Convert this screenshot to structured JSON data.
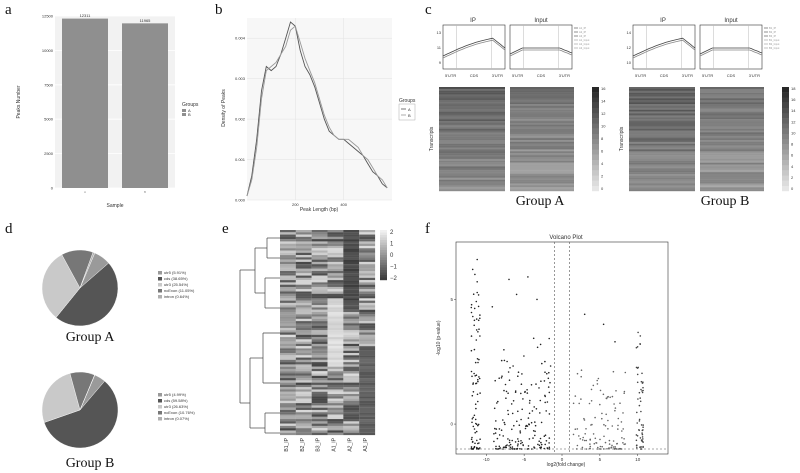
{
  "panel_letters": [
    "a",
    "b",
    "c",
    "d",
    "e",
    "f"
  ],
  "colors": {
    "bar": "#8f8f8f",
    "grid": "#e2e2e2",
    "dark_gray": "#555555",
    "mid_gray": "#777777",
    "light_gray": "#c9c9c9"
  },
  "chart_data": [
    {
      "id": "a",
      "type": "bar",
      "categories": [
        "A",
        "B"
      ],
      "values": [
        12311,
        11965
      ],
      "value_labels": [
        "12311",
        "11965"
      ],
      "xlabel": "Sample",
      "ylabel": "Peaks Number",
      "yticks": [
        "0",
        "2500",
        "5000",
        "7500",
        "10000",
        "12500"
      ],
      "ylim": [
        0,
        12500
      ],
      "legend_title": "Groups",
      "legend_entries": [
        "A",
        "B"
      ],
      "grid": true
    },
    {
      "id": "b",
      "type": "line",
      "xlabel": "Peak Length (bp)",
      "ylabel": "Density of Peaks",
      "xlim": [
        0,
        600
      ],
      "ylim": [
        0,
        0.0045
      ],
      "xticks": [
        "200",
        "400"
      ],
      "yticks": [
        "0.000",
        "0.001",
        "0.002",
        "0.003",
        "0.004"
      ],
      "legend_title": "Groups",
      "legend_entries": [
        "A",
        "B"
      ],
      "grid": true,
      "series": [
        {
          "name": "A",
          "x": [
            0,
            20,
            40,
            60,
            80,
            100,
            120,
            140,
            160,
            180,
            200,
            220,
            240,
            260,
            280,
            300,
            320,
            340,
            360,
            380,
            400,
            420,
            440,
            460,
            480,
            500,
            520,
            540,
            560,
            580
          ],
          "y": [
            0.0001,
            0.0006,
            0.0015,
            0.0027,
            0.0033,
            0.0032,
            0.0033,
            0.0036,
            0.004,
            0.0044,
            0.0043,
            0.0037,
            0.0033,
            0.0031,
            0.0028,
            0.0024,
            0.002,
            0.0017,
            0.0016,
            0.0015,
            0.0015,
            0.0014,
            0.0013,
            0.0012,
            0.0011,
            0.0009,
            0.0007,
            0.0006,
            0.0004,
            0.0003
          ]
        },
        {
          "name": "B",
          "x": [
            0,
            20,
            40,
            60,
            80,
            100,
            120,
            140,
            160,
            180,
            200,
            220,
            240,
            260,
            280,
            300,
            320,
            340,
            360,
            380,
            400,
            420,
            440,
            460,
            480,
            500,
            520,
            540,
            560,
            580
          ],
          "y": [
            0.0001,
            0.0005,
            0.0013,
            0.0025,
            0.0032,
            0.0033,
            0.0034,
            0.0036,
            0.0038,
            0.0042,
            0.0043,
            0.0039,
            0.0035,
            0.0032,
            0.0029,
            0.0025,
            0.0021,
            0.0018,
            0.0016,
            0.0015,
            0.0015,
            0.0015,
            0.0014,
            0.0013,
            0.0011,
            0.001,
            0.0008,
            0.0006,
            0.0005,
            0.0003
          ]
        }
      ]
    },
    {
      "id": "c",
      "type": "heatmap",
      "groups": [
        {
          "caption": "Group A",
          "profile_titles": [
            "IP",
            "Input"
          ],
          "region_labels": [
            "5'UTR",
            "CDS",
            "3'UTR",
            "5'UTR",
            "CDS",
            "3'UTR"
          ],
          "yticks": [
            "9",
            "11",
            "13"
          ],
          "ylabel": "Transcripts",
          "colorbar_ticks": [
            "16",
            "14",
            "12",
            "10",
            "8",
            "6",
            "4",
            "2",
            "0"
          ],
          "legend_entries": [
            "A1_IP",
            "A2_IP",
            "A3_IP",
            "A1_Input",
            "A2_Input",
            "A3_Input"
          ]
        },
        {
          "caption": "Group B",
          "profile_titles": [
            "IP",
            "Input"
          ],
          "region_labels": [
            "5'UTR",
            "CDS",
            "3'UTR",
            "5'UTR",
            "CDS",
            "3'UTR"
          ],
          "yticks": [
            "10",
            "12",
            "14"
          ],
          "ylabel": "Transcripts",
          "colorbar_ticks": [
            "18",
            "16",
            "14",
            "12",
            "10",
            "8",
            "6",
            "4",
            "2",
            "0"
          ],
          "legend_entries": [
            "B1_IP",
            "B2_IP",
            "B3_IP",
            "B1_Input",
            "B2_Input",
            "B3_Input"
          ]
        }
      ]
    },
    {
      "id": "d",
      "type": "pie",
      "pies": [
        {
          "caption": "Group A",
          "categories": [
            "utr5 (5.91%)",
            "cds (38.65%)",
            "utr3 (25.54%)",
            "ncExon (11.05%)",
            "intron (0.64%)"
          ],
          "values": [
            5.91,
            38.65,
            25.54,
            11.05,
            0.64
          ]
        },
        {
          "caption": "Group B",
          "categories": [
            "utr5 (4.99%)",
            "cds (59.58%)",
            "utr3 (26.63%)",
            "ncExon (10.76%)",
            "intron (0.07%)"
          ],
          "values": [
            4.99,
            59.58,
            26.63,
            10.76,
            0.07
          ]
        }
      ]
    },
    {
      "id": "e",
      "type": "heatmap",
      "columns": [
        "B1_IP",
        "B2_IP",
        "B3_IP",
        "A1_IP",
        "A2_IP",
        "A3_IP"
      ],
      "colorbar_ticks": [
        "2",
        "1",
        "0",
        "−1",
        "−2"
      ],
      "vmin": -2,
      "vmax": 2
    },
    {
      "id": "f",
      "type": "scatter",
      "title": "Volcano Plot",
      "xlabel": "log2(fold change)",
      "ylabel": "-log10 (p-value)",
      "xticks": [
        "-10",
        "-5",
        "0",
        "5",
        "10"
      ],
      "yticks": [
        "0",
        "5"
      ],
      "xlim": [
        -14,
        14
      ],
      "ylim": [
        -1.2,
        7.3
      ],
      "vlines": [
        -1,
        1
      ],
      "hline": -1
    }
  ]
}
